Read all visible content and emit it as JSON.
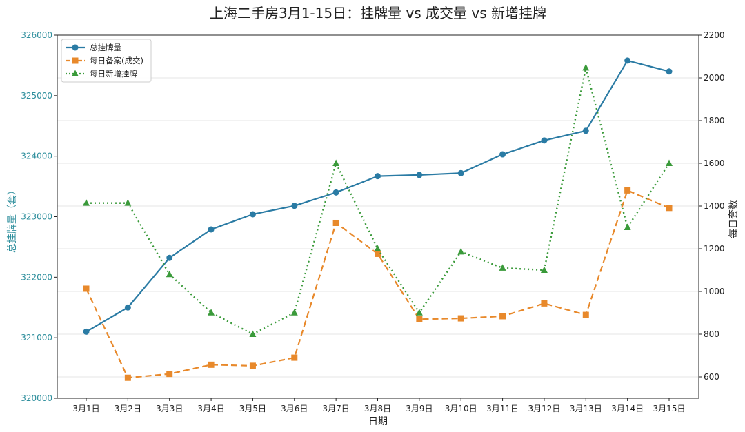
{
  "chart_data": {
    "type": "line",
    "title": "上海二手房3月1-15日：挂牌量 vs 成交量 vs 新增挂牌",
    "xlabel": "日期",
    "ylabel_left": "总挂牌量（套）",
    "ylabel_right": "每日套数",
    "categories": [
      "3月1日",
      "3月2日",
      "3月3日",
      "3月4日",
      "3月5日",
      "3月6日",
      "3月7日",
      "3月8日",
      "3月9日",
      "3月10日",
      "3月11日",
      "3月12日",
      "3月13日",
      "3月14日",
      "3月15日"
    ],
    "ylim_left": [
      320000,
      326000
    ],
    "yticks_left": [
      320000,
      321000,
      322000,
      323000,
      324000,
      325000,
      326000
    ],
    "ylim_right": [
      500,
      2200
    ],
    "yticks_right": [
      600,
      800,
      1000,
      1200,
      1400,
      1600,
      1800,
      2000,
      2200
    ],
    "grid": true,
    "legend_position": "top-left",
    "series": [
      {
        "name": "总挂牌量",
        "axis": "left",
        "style": "solid",
        "marker": "circle",
        "color": "#2a7ba4",
        "values": [
          321100,
          321500,
          322320,
          322790,
          323040,
          323180,
          323400,
          323670,
          323690,
          323720,
          324030,
          324260,
          324420,
          325580,
          325400
        ]
      },
      {
        "name": "每日备案(成交)",
        "axis": "right",
        "style": "dashed",
        "marker": "square",
        "color": "#e8892b",
        "values": [
          1013,
          596,
          614,
          657,
          652,
          690,
          1321,
          1176,
          870,
          874,
          884,
          944,
          890,
          1473,
          1391
        ]
      },
      {
        "name": "每日新增挂牌",
        "axis": "right",
        "style": "dotted",
        "marker": "triangle",
        "color": "#3a9a3a",
        "values": [
          1414,
          1414,
          1080,
          901,
          800,
          901,
          1600,
          1200,
          901,
          1186,
          1110,
          1100,
          2047,
          1300,
          1600
        ]
      }
    ],
    "colors": {
      "left_axis": "#2f8f9d",
      "right_axis": "#222222",
      "grid": "#e6e6e6"
    }
  }
}
